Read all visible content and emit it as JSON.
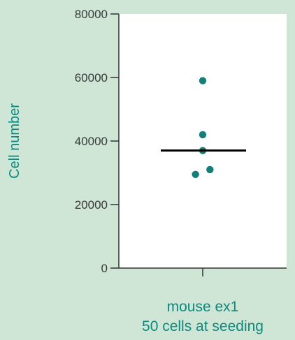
{
  "colors": {
    "background": "#cfe6d6",
    "plot_bg": "#ffffff",
    "point": "#127f78",
    "median_line": "#000000",
    "axis": "#333333",
    "label_teal": "#0a8a80"
  },
  "chart_data": {
    "type": "scatter",
    "title": "",
    "xlabel": "",
    "ylabel": "Cell number",
    "ylim": [
      0,
      80000
    ],
    "yticks": [
      0,
      20000,
      40000,
      60000,
      80000
    ],
    "ytick_labels": [
      "0",
      "20000",
      "40000",
      "60000",
      "80000"
    ],
    "categories": [
      "mouse ex1",
      "50 cells at seeding"
    ],
    "category_lines": [
      "mouse ex1",
      "50 cells at seeding"
    ],
    "grid": false,
    "series": [
      {
        "points": [
          {
            "x": 0,
            "y": 59000
          },
          {
            "x": 0,
            "y": 42000
          },
          {
            "x": 0,
            "y": 37000
          },
          {
            "x": -0.09,
            "y": 29500
          },
          {
            "x": 0.09,
            "y": 31000
          }
        ],
        "median": 37000
      }
    ]
  }
}
